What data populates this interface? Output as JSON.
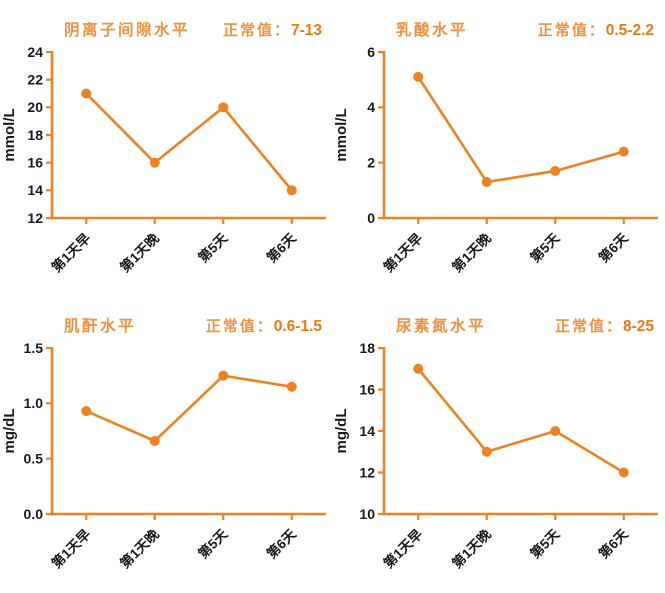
{
  "page": {
    "background": "#FFFFFF"
  },
  "colors": {
    "accent": "#EE8222",
    "title_orange": "#F0913F",
    "range_value_orange": "#E87A12",
    "axis_text_black": "#1A1A1A"
  },
  "chart_data": [
    {
      "type": "line",
      "title": "阴离子间隙水平",
      "normal_label": "正常值：",
      "normal_value": "7-13",
      "xlabel": "",
      "ylabel": "mmol/L",
      "ylim": [
        12,
        24
      ],
      "yticks": [
        12,
        14,
        16,
        18,
        20,
        22,
        24
      ],
      "ytick_labels": [
        "12",
        "14",
        "16",
        "18",
        "20",
        "22",
        "24"
      ],
      "categories": [
        "第1天早",
        "第1天晚",
        "第5天",
        "第6天"
      ],
      "values": [
        21,
        16,
        20,
        14
      ],
      "grid": false,
      "legend": "none",
      "marker": "circle"
    },
    {
      "type": "line",
      "title": "乳酸水平",
      "normal_label": "正常值：",
      "normal_value": "0.5-2.2",
      "xlabel": "",
      "ylabel": "mmol/L",
      "ylim": [
        0,
        6
      ],
      "yticks": [
        0,
        2,
        4,
        6
      ],
      "ytick_labels": [
        "0",
        "2",
        "4",
        "6"
      ],
      "categories": [
        "第1天早",
        "第1天晚",
        "第5天",
        "第6天"
      ],
      "values": [
        5.1,
        1.3,
        1.7,
        2.4
      ],
      "grid": false,
      "legend": "none",
      "marker": "circle"
    },
    {
      "type": "line",
      "title": "肌酐水平",
      "normal_label": "正常值：",
      "normal_value": "0.6-1.5",
      "xlabel": "",
      "ylabel": "mg/dL",
      "ylim": [
        0,
        1.5
      ],
      "yticks": [
        0,
        0.5,
        1,
        1.5
      ],
      "ytick_labels": [
        "0.0",
        "0.5",
        "1.0",
        "1.5"
      ],
      "categories": [
        "第1天早",
        "第1天晚",
        "第5天",
        "第6天"
      ],
      "values": [
        0.93,
        0.66,
        1.25,
        1.15
      ],
      "grid": false,
      "legend": "none",
      "marker": "circle"
    },
    {
      "type": "line",
      "title": "尿素氮水平",
      "normal_label": "正常值：",
      "normal_value": "8-25",
      "xlabel": "",
      "ylabel": "mg/dL",
      "ylim": [
        10,
        18
      ],
      "yticks": [
        10,
        12,
        14,
        16,
        18
      ],
      "ytick_labels": [
        "10",
        "12",
        "14",
        "16",
        "18"
      ],
      "categories": [
        "第1天早",
        "第1天晚",
        "第5天",
        "第6天"
      ],
      "values": [
        17,
        13,
        14,
        12
      ],
      "grid": false,
      "legend": "none",
      "marker": "circle"
    }
  ]
}
